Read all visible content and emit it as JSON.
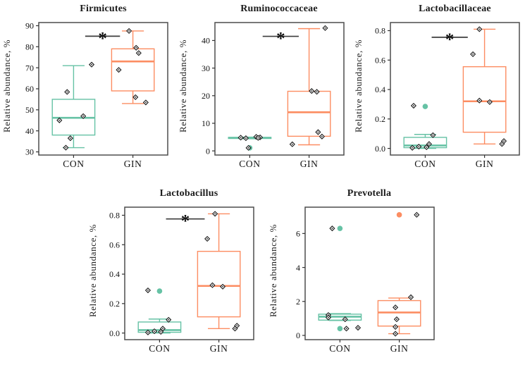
{
  "palette": {
    "con_color": "#66C2A5",
    "gin_color": "#FC8D62",
    "frame_color": "#4D4D4D",
    "tick_color": "#333333",
    "significance_color": "#3C3C3C",
    "point_outline": "#1A1A1A",
    "box_fill": "#FFFFFF"
  },
  "chart_data": [
    {
      "type": "boxplot",
      "title": "Firmicutes",
      "ylabel": "Relative abundance, %",
      "categories": [
        "CON",
        "GIN"
      ],
      "ylim": [
        28.5,
        91.5
      ],
      "yticks": [
        30,
        40,
        50,
        60,
        70,
        80,
        90
      ],
      "ytick_labels": [
        "30",
        "40",
        "50",
        "60",
        "70",
        "80",
        "90"
      ],
      "groups": [
        {
          "label": "CON",
          "color": "#66C2A5",
          "box": {
            "q1": 38,
            "median": 46.2,
            "q3": 55,
            "whisker_low": 32,
            "whisker_high": 71
          },
          "outliers": [],
          "points": [
            [
              58.5,
              -0.1
            ],
            [
              71.5,
              0.28
            ],
            [
              45,
              -0.22
            ],
            [
              47,
              0.15
            ],
            [
              36.5,
              -0.05
            ],
            [
              32,
              -0.12
            ]
          ]
        },
        {
          "label": "GIN",
          "color": "#FC8D62",
          "box": {
            "q1": 59,
            "median": 73,
            "q3": 79,
            "whisker_low": 53,
            "whisker_high": 87.5
          },
          "outliers": [],
          "points": [
            [
              87.5,
              -0.06
            ],
            [
              79.5,
              0.05
            ],
            [
              77,
              0.09
            ],
            [
              69,
              -0.22
            ],
            [
              56,
              0.04
            ],
            [
              53.5,
              0.2
            ]
          ]
        }
      ],
      "significance": {
        "label": "*",
        "y": 85,
        "x_from": 0.36,
        "x_to": 0.63
      }
    },
    {
      "type": "boxplot",
      "title": "Ruminococcaceae",
      "ylabel": "Relative abundance, %",
      "categories": [
        "CON",
        "GIN"
      ],
      "ylim": [
        -1.5,
        46.5
      ],
      "yticks": [
        0,
        10,
        20,
        30,
        40
      ],
      "ytick_labels": [
        "0",
        "10",
        "20",
        "30",
        "40"
      ],
      "groups": [
        {
          "label": "CON",
          "color": "#66C2A5",
          "box": {
            "q1": 4.5,
            "median": 4.7,
            "q3": 4.9,
            "whisker_low": 4.4,
            "whisker_high": 5.0
          },
          "outliers": [
            1.1
          ],
          "points": [
            [
              4.8,
              -0.14
            ],
            [
              4.6,
              -0.06
            ],
            [
              5.1,
              0.1
            ],
            [
              4.9,
              0.16
            ],
            [
              4.7,
              0.13
            ],
            [
              1.1,
              -0.02
            ]
          ]
        },
        {
          "label": "GIN",
          "color": "#FC8D62",
          "box": {
            "q1": 5.3,
            "median": 14,
            "q3": 21.6,
            "whisker_low": 2.2,
            "whisker_high": 44.3
          },
          "outliers": [],
          "points": [
            [
              44.5,
              0.25
            ],
            [
              21.7,
              0.04
            ],
            [
              21.4,
              0.12
            ],
            [
              6.8,
              0.14
            ],
            [
              5.2,
              0.2
            ],
            [
              2.4,
              -0.26
            ]
          ]
        }
      ],
      "significance": {
        "label": "*",
        "y": 41.5,
        "x_from": 0.37,
        "x_to": 0.65
      }
    },
    {
      "type": "boxplot",
      "title": "Lactobacillaceae",
      "ylabel": "Relative abundance, %",
      "categories": [
        "CON",
        "GIN"
      ],
      "ylim": [
        -0.045,
        0.855
      ],
      "yticks": [
        0,
        0.2,
        0.4,
        0.6,
        0.8
      ],
      "ytick_labels": [
        "0.0",
        "0.2",
        "0.4",
        "0.6",
        "0.8"
      ],
      "groups": [
        {
          "label": "CON",
          "color": "#66C2A5",
          "box": {
            "q1": 0.005,
            "median": 0.02,
            "q3": 0.075,
            "whisker_low": 0.0,
            "whisker_high": 0.095
          },
          "outliers": [
            0.285
          ],
          "points": [
            [
              0.29,
              -0.18
            ],
            [
              0.09,
              0.12
            ],
            [
              0.03,
              0.06
            ],
            [
              0.012,
              -0.1
            ],
            [
              0.008,
              0.02
            ],
            [
              0.004,
              -0.2
            ]
          ]
        },
        {
          "label": "GIN",
          "color": "#FC8D62",
          "box": {
            "q1": 0.11,
            "median": 0.32,
            "q3": 0.555,
            "whisker_low": 0.03,
            "whisker_high": 0.81
          },
          "outliers": [],
          "points": [
            [
              0.81,
              -0.08
            ],
            [
              0.64,
              -0.18
            ],
            [
              0.325,
              -0.08
            ],
            [
              0.315,
              0.08
            ],
            [
              0.05,
              0.3
            ],
            [
              0.03,
              0.27
            ]
          ]
        }
      ],
      "significance": {
        "label": "*",
        "y": 0.755,
        "x_from": 0.32,
        "x_to": 0.6
      }
    },
    {
      "type": "boxplot",
      "title": "Lactobacillus",
      "ylabel": "Relative abundance, %",
      "categories": [
        "CON",
        "GIN"
      ],
      "ylim": [
        -0.045,
        0.855
      ],
      "yticks": [
        0,
        0.2,
        0.4,
        0.6,
        0.8
      ],
      "ytick_labels": [
        "0.0",
        "0.2",
        "0.4",
        "0.6",
        "0.8"
      ],
      "groups": [
        {
          "label": "CON",
          "color": "#66C2A5",
          "box": {
            "q1": 0.005,
            "median": 0.02,
            "q3": 0.075,
            "whisker_low": 0.0,
            "whisker_high": 0.095
          },
          "outliers": [
            0.285
          ],
          "points": [
            [
              0.29,
              -0.18
            ],
            [
              0.09,
              0.14
            ],
            [
              0.03,
              0.05
            ],
            [
              0.012,
              -0.08
            ],
            [
              0.008,
              0.02
            ],
            [
              0.004,
              -0.18
            ]
          ]
        },
        {
          "label": "GIN",
          "color": "#FC8D62",
          "box": {
            "q1": 0.11,
            "median": 0.32,
            "q3": 0.555,
            "whisker_low": 0.03,
            "whisker_high": 0.81
          },
          "outliers": [],
          "points": [
            [
              0.81,
              -0.06
            ],
            [
              0.64,
              -0.18
            ],
            [
              0.325,
              -0.1
            ],
            [
              0.315,
              0.06
            ],
            [
              0.05,
              0.28
            ],
            [
              0.03,
              0.25
            ]
          ]
        }
      ],
      "significance": {
        "label": "*",
        "y": 0.775,
        "x_from": 0.32,
        "x_to": 0.62
      }
    },
    {
      "type": "boxplot",
      "title": "Prevotella",
      "ylabel": "Relative abundance, %",
      "categories": [
        "CON",
        "GIN"
      ],
      "ylim": [
        -0.25,
        7.55
      ],
      "yticks": [
        0,
        2,
        4,
        6
      ],
      "ytick_labels": [
        "0",
        "2",
        "4",
        "6"
      ],
      "groups": [
        {
          "label": "CON",
          "color": "#66C2A5",
          "box": {
            "q1": 0.9,
            "median": 1.1,
            "q3": 1.25,
            "whisker_low": 0.88,
            "whisker_high": 1.28
          },
          "outliers": [
            6.3,
            0.4
          ],
          "points": [
            [
              6.3,
              -0.12
            ],
            [
              1.2,
              -0.18
            ],
            [
              1.05,
              -0.18
            ],
            [
              0.95,
              0.08
            ],
            [
              0.45,
              0.28
            ],
            [
              0.4,
              0.1
            ]
          ]
        },
        {
          "label": "GIN",
          "color": "#FC8D62",
          "box": {
            "q1": 0.55,
            "median": 1.35,
            "q3": 2.05,
            "whisker_low": 0.1,
            "whisker_high": 2.2
          },
          "outliers": [
            7.1
          ],
          "points": [
            [
              7.1,
              0.27
            ],
            [
              2.25,
              0.18
            ],
            [
              1.65,
              -0.06
            ],
            [
              0.95,
              -0.04
            ],
            [
              0.5,
              -0.06
            ],
            [
              0.1,
              -0.06
            ]
          ]
        }
      ],
      "significance": null
    }
  ]
}
